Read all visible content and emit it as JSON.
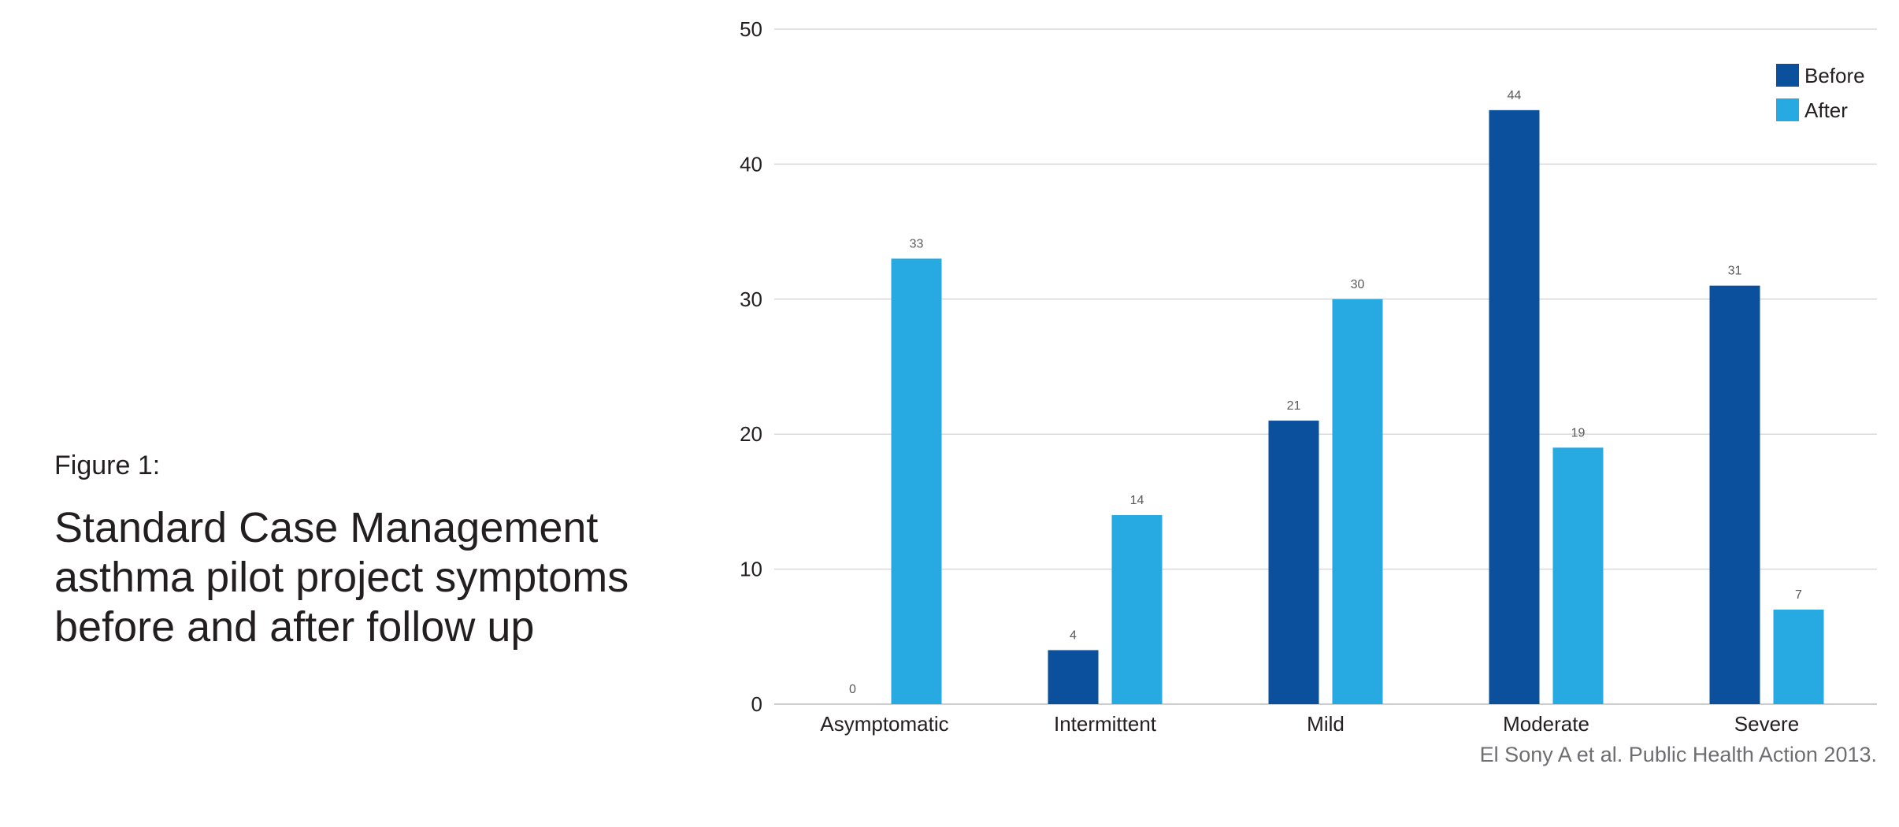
{
  "caption": {
    "label": "Figure 1:",
    "title": "Standard Case Management asthma pilot project symptoms before and after follow up"
  },
  "source": "El Sony A et al. Public Health Action 2013.",
  "colors": {
    "before": "#0b509c",
    "after": "#27aae1",
    "grid": "#d9d9db",
    "axis": "#bcbec0"
  },
  "chart_data": {
    "type": "bar",
    "title": "",
    "xlabel": "",
    "ylabel": "",
    "categories": [
      "Asymptomatic",
      "Intermittent",
      "Mild",
      "Moderate",
      "Severe"
    ],
    "series": [
      {
        "name": "Before",
        "values": [
          0,
          4,
          21,
          44,
          31
        ]
      },
      {
        "name": "After",
        "values": [
          33,
          14,
          30,
          19,
          7
        ]
      }
    ],
    "ylim": [
      0,
      50
    ],
    "yticks": [
      0,
      10,
      20,
      30,
      40,
      50
    ],
    "grid": true,
    "legend": "top-right",
    "data_labels": true
  }
}
